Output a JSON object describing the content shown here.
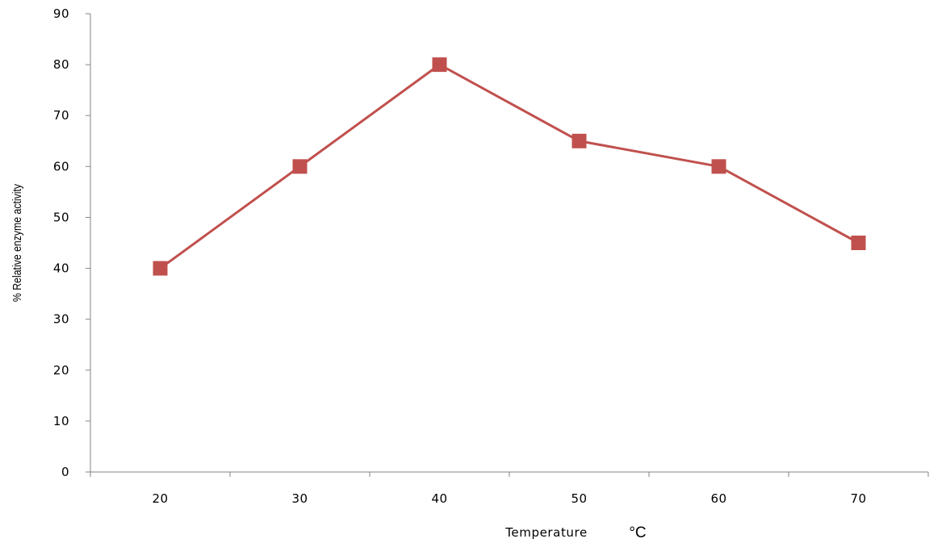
{
  "chart_data": {
    "type": "line",
    "title": "",
    "xlabel": "Temperature",
    "xlabel_unit": "°C",
    "ylabel": "% Relative enzyme activity",
    "categories": [
      "20",
      "30",
      "40",
      "50",
      "60",
      "70"
    ],
    "x": [
      20,
      30,
      40,
      50,
      60,
      70
    ],
    "y_ticks": [
      "0",
      "10",
      "20",
      "30",
      "40",
      "50",
      "60",
      "70",
      "80",
      "90"
    ],
    "ylim": [
      0,
      90
    ],
    "grid": false,
    "legend": "none",
    "series": [
      {
        "values": [
          40,
          60,
          80,
          65,
          60,
          45
        ],
        "color": "#c0504d",
        "marker": "square"
      }
    ]
  }
}
